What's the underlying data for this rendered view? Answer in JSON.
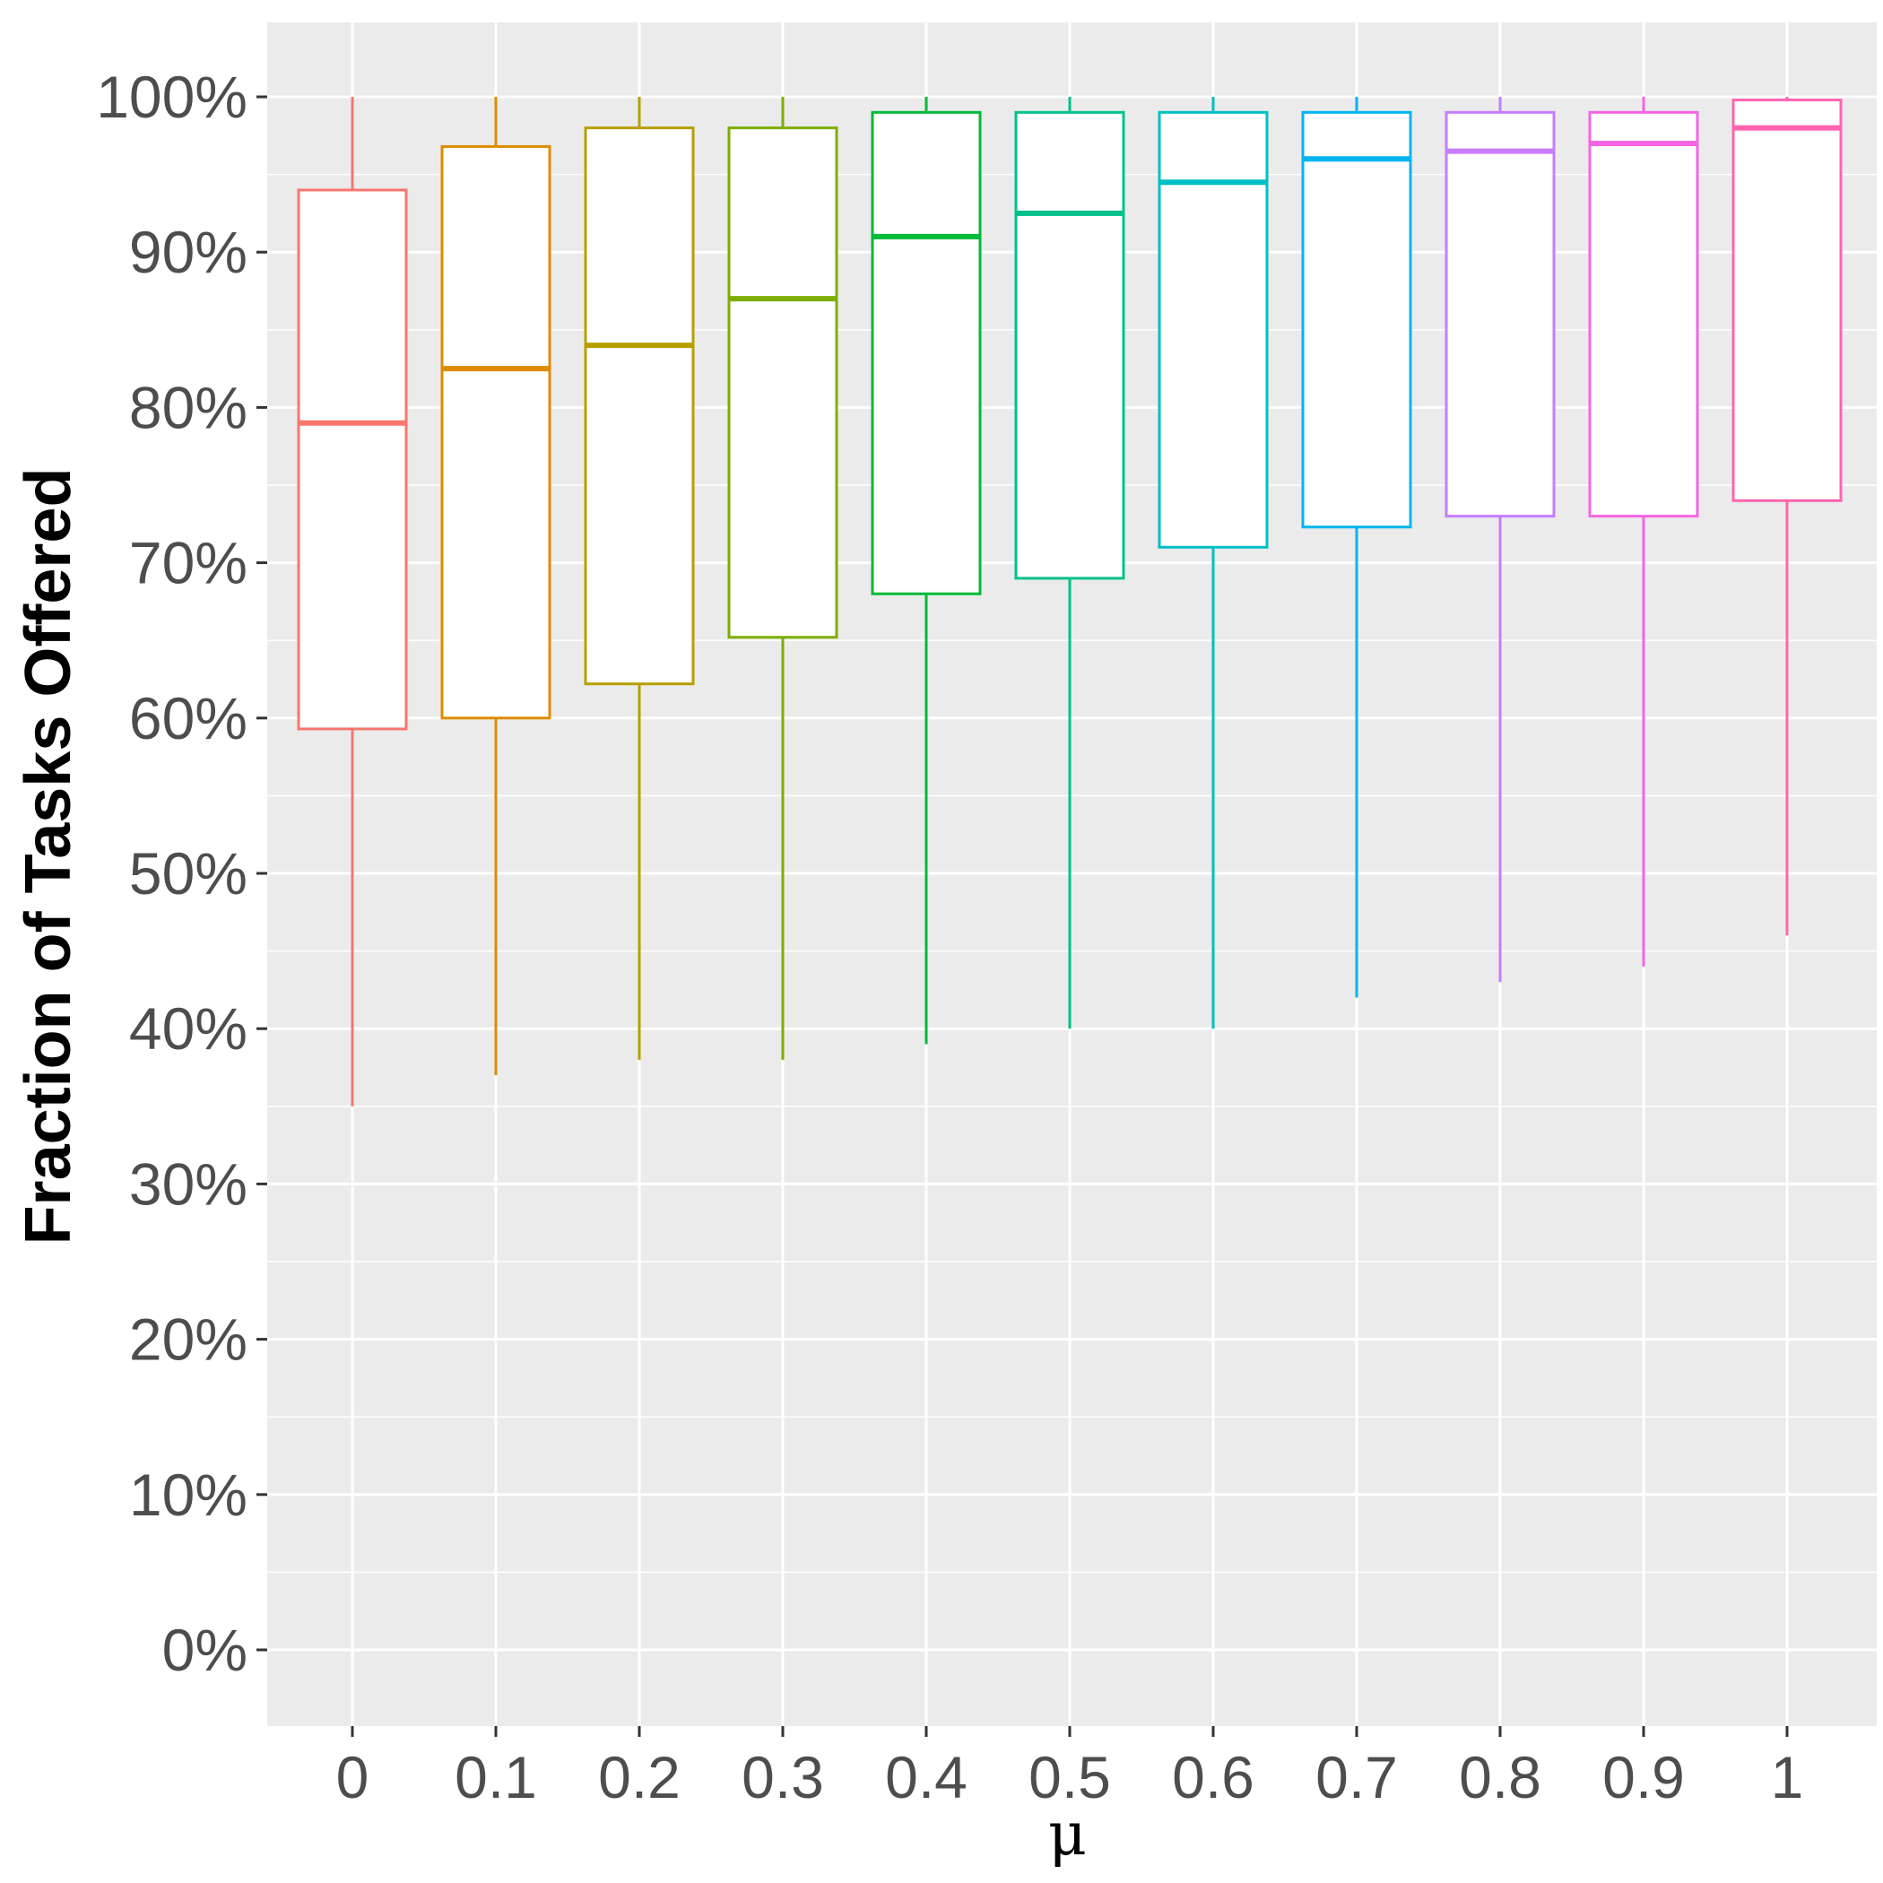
{
  "chart_data": {
    "type": "boxplot",
    "title": "",
    "xlabel": "μ",
    "ylabel": "Fraction of Tasks Offered",
    "ylim": [
      -5,
      104
    ],
    "y_ticks": [
      0,
      10,
      20,
      30,
      40,
      50,
      60,
      70,
      80,
      90,
      100
    ],
    "y_tick_labels": [
      "0%",
      "10%",
      "20%",
      "30%",
      "40%",
      "50%",
      "60%",
      "70%",
      "80%",
      "90%",
      "100%"
    ],
    "grid": true,
    "legend": "none",
    "categories": [
      "0",
      "0.1",
      "0.2",
      "0.3",
      "0.4",
      "0.5",
      "0.6",
      "0.7",
      "0.8",
      "0.9",
      "1"
    ],
    "boxes": [
      {
        "category": "0",
        "min": 35,
        "q1": 59.3,
        "median": 79,
        "q3": 94,
        "max": 100,
        "color": "#F8766D"
      },
      {
        "category": "0.1",
        "min": 37,
        "q1": 60,
        "median": 82.5,
        "q3": 96.8,
        "max": 100,
        "color": "#DE8C00"
      },
      {
        "category": "0.2",
        "min": 38,
        "q1": 62.2,
        "median": 84,
        "q3": 98,
        "max": 100,
        "color": "#B79F00"
      },
      {
        "category": "0.3",
        "min": 38,
        "q1": 65.2,
        "median": 87,
        "q3": 98,
        "max": 100,
        "color": "#7CAE00"
      },
      {
        "category": "0.4",
        "min": 39,
        "q1": 68,
        "median": 91,
        "q3": 99,
        "max": 100,
        "color": "#00BA38"
      },
      {
        "category": "0.5",
        "min": 40,
        "q1": 69,
        "median": 92.5,
        "q3": 99,
        "max": 100,
        "color": "#00C08B"
      },
      {
        "category": "0.6",
        "min": 40,
        "q1": 71,
        "median": 94.5,
        "q3": 99,
        "max": 100,
        "color": "#00BFC4"
      },
      {
        "category": "0.7",
        "min": 42,
        "q1": 72.3,
        "median": 96,
        "q3": 99,
        "max": 100,
        "color": "#00B4F0"
      },
      {
        "category": "0.8",
        "min": 43,
        "q1": 73,
        "median": 96.5,
        "q3": 99,
        "max": 100,
        "color": "#C77CFF"
      },
      {
        "category": "0.9",
        "min": 44,
        "q1": 73,
        "median": 97,
        "q3": 99,
        "max": 100,
        "color": "#F564E3"
      },
      {
        "category": "1",
        "min": 46,
        "q1": 74,
        "median": 98,
        "q3": 99.8,
        "max": 100,
        "color": "#FF64B0"
      }
    ],
    "panel_background": "#EBEBEB",
    "grid_color": "#FFFFFF"
  }
}
